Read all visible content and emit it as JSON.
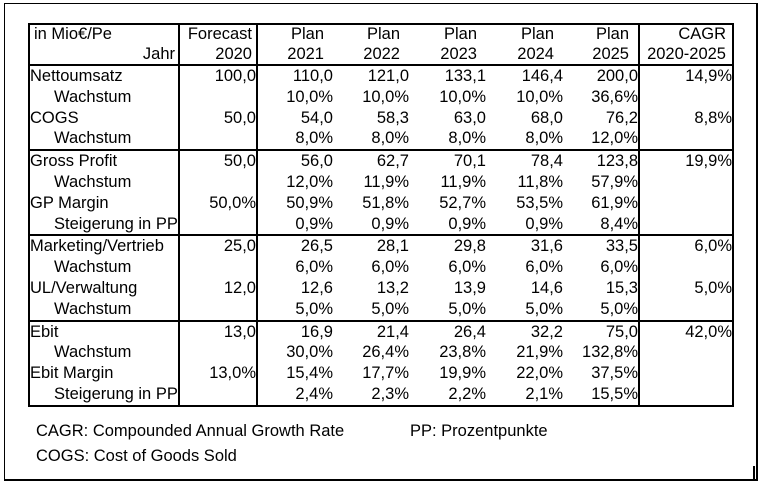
{
  "window": {
    "background_color": "#ffffff",
    "border_color": "#000000",
    "text_color": "#000000"
  },
  "table": {
    "unit_header": {
      "line1": "in Mio€/Pe",
      "line2": "Jahr"
    },
    "columns": [
      {
        "line1": "Forecast",
        "line2": "2020"
      },
      {
        "line1": "Plan",
        "line2": "2021"
      },
      {
        "line1": "Plan",
        "line2": "2022"
      },
      {
        "line1": "Plan",
        "line2": "2023"
      },
      {
        "line1": "Plan",
        "line2": "2024"
      },
      {
        "line1": "Plan",
        "line2": "2025"
      },
      {
        "line1": "CAGR",
        "line2": "2020-2025"
      }
    ],
    "rows": [
      {
        "label": "Nettoumsatz",
        "indent": false,
        "section_start": false,
        "values": [
          "100,0",
          "110,0",
          "121,0",
          "133,1",
          "146,4",
          "200,0",
          "14,9%"
        ]
      },
      {
        "label": "Wachstum",
        "indent": true,
        "section_start": false,
        "values": [
          "",
          "10,0%",
          "10,0%",
          "10,0%",
          "10,0%",
          "36,6%",
          ""
        ]
      },
      {
        "label": "COGS",
        "indent": false,
        "section_start": false,
        "values": [
          "50,0",
          "54,0",
          "58,3",
          "63,0",
          "68,0",
          "76,2",
          "8,8%"
        ]
      },
      {
        "label": "Wachstum",
        "indent": true,
        "section_start": false,
        "values": [
          "",
          "8,0%",
          "8,0%",
          "8,0%",
          "8,0%",
          "12,0%",
          ""
        ]
      },
      {
        "label": "Gross Profit",
        "indent": false,
        "section_start": true,
        "values": [
          "50,0",
          "56,0",
          "62,7",
          "70,1",
          "78,4",
          "123,8",
          "19,9%"
        ]
      },
      {
        "label": "Wachstum",
        "indent": true,
        "section_start": false,
        "values": [
          "",
          "12,0%",
          "11,9%",
          "11,9%",
          "11,8%",
          "57,9%",
          ""
        ]
      },
      {
        "label": "GP Margin",
        "indent": false,
        "section_start": false,
        "values": [
          "50,0%",
          "50,9%",
          "51,8%",
          "52,7%",
          "53,5%",
          "61,9%",
          ""
        ]
      },
      {
        "label": "Steigerung in PP",
        "indent": true,
        "section_start": false,
        "values": [
          "",
          "0,9%",
          "0,9%",
          "0,9%",
          "0,9%",
          "8,4%",
          ""
        ]
      },
      {
        "label": "Marketing/Vertrieb",
        "indent": false,
        "section_start": true,
        "values": [
          "25,0",
          "26,5",
          "28,1",
          "29,8",
          "31,6",
          "33,5",
          "6,0%"
        ]
      },
      {
        "label": "Wachstum",
        "indent": true,
        "section_start": false,
        "values": [
          "",
          "6,0%",
          "6,0%",
          "6,0%",
          "6,0%",
          "6,0%",
          ""
        ]
      },
      {
        "label": "UL/Verwaltung",
        "indent": false,
        "section_start": false,
        "values": [
          "12,0",
          "12,6",
          "13,2",
          "13,9",
          "14,6",
          "15,3",
          "5,0%"
        ]
      },
      {
        "label": "Wachstum",
        "indent": true,
        "section_start": false,
        "values": [
          "",
          "5,0%",
          "5,0%",
          "5,0%",
          "5,0%",
          "5,0%",
          ""
        ]
      },
      {
        "label": "Ebit",
        "indent": false,
        "section_start": true,
        "values": [
          "13,0",
          "16,9",
          "21,4",
          "26,4",
          "32,2",
          "75,0",
          "42,0%"
        ]
      },
      {
        "label": "Wachstum",
        "indent": true,
        "section_start": false,
        "values": [
          "",
          "30,0%",
          "26,4%",
          "23,8%",
          "21,9%",
          "132,8%",
          ""
        ]
      },
      {
        "label": "Ebit Margin",
        "indent": false,
        "section_start": false,
        "values": [
          "13,0%",
          "15,4%",
          "17,7%",
          "19,9%",
          "22,0%",
          "37,5%",
          ""
        ]
      },
      {
        "label": "Steigerung in PP",
        "indent": true,
        "section_start": false,
        "values": [
          "",
          "2,4%",
          "2,3%",
          "2,2%",
          "2,1%",
          "15,5%",
          ""
        ]
      }
    ]
  },
  "footnotes": {
    "cagr": "CAGR: Compounded Annual Growth Rate",
    "cogs": "COGS: Cost of Goods Sold",
    "pp": "PP: Prozentpunkte"
  }
}
